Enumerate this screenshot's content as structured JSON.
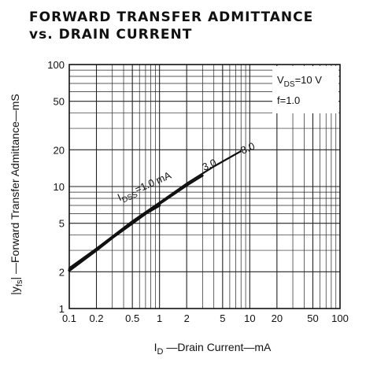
{
  "chart_data": {
    "type": "line",
    "title_line1": "FORWARD TRANSFER ADMITTANCE",
    "title_line2": "vs. DRAIN CURRENT",
    "xlabel_main": "I",
    "xlabel_sub": "D",
    "xlabel_rest": " —Drain Current—mA",
    "ylabel_prefix": "|y",
    "ylabel_sub": "fs",
    "ylabel_rest": "|  —Forward Transfer Admittance—mS",
    "xscale": "log",
    "yscale": "log",
    "xlim": [
      0.1,
      100
    ],
    "ylim": [
      1,
      100
    ],
    "grid": true,
    "x_ticks": [
      0.1,
      0.2,
      0.5,
      1,
      2,
      5,
      10,
      20,
      50,
      100
    ],
    "x_tick_labels": [
      "0.1",
      "0.2",
      "0.5",
      "1",
      "2",
      "5",
      "10",
      "20",
      "50",
      "100"
    ],
    "y_ticks": [
      1,
      2,
      5,
      10,
      20,
      50,
      100
    ],
    "y_tick_labels": [
      "1",
      "2",
      "5",
      "10",
      "20",
      "50",
      "100"
    ],
    "conditions": {
      "vds_main": "V",
      "vds_sub": "DS",
      "vds_rest": "=10 V",
      "freq": "f=1.0"
    },
    "series": [
      {
        "name": "1.0 mA",
        "x": [
          0.1,
          0.2,
          0.3,
          0.5,
          0.7,
          1.0
        ],
        "y": [
          2.05,
          3.0,
          3.8,
          5.0,
          6.0,
          7.0
        ]
      },
      {
        "name": "3.0",
        "x": [
          0.1,
          0.2,
          0.5,
          1.0,
          2.0,
          3.0
        ],
        "y": [
          2.1,
          3.05,
          5.1,
          7.2,
          10.2,
          12.3
        ]
      },
      {
        "name": "8.0",
        "x": [
          0.1,
          0.2,
          0.5,
          1.0,
          2.0,
          4.0,
          8.0
        ],
        "y": [
          2.15,
          3.1,
          5.2,
          7.4,
          10.6,
          14.6,
          19.5
        ]
      }
    ],
    "annotations": {
      "idss_main": "I",
      "idss_sub": "DSS",
      "idss_rest": "=1.0 mA",
      "label_3": "3.0",
      "label_8": "8.0"
    }
  }
}
